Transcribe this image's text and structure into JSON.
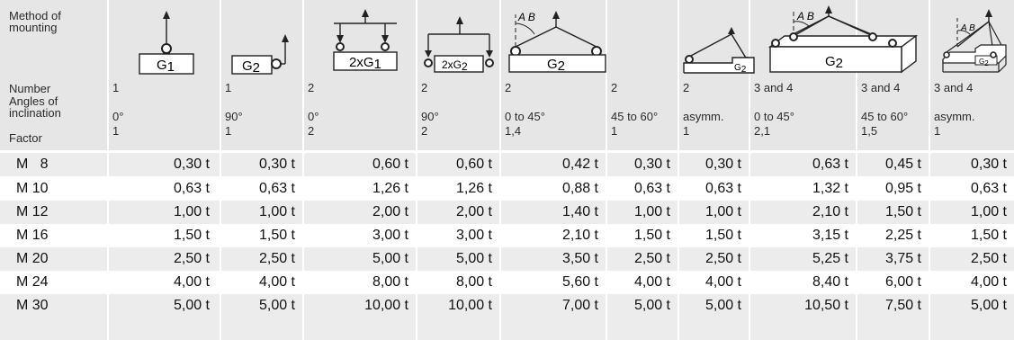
{
  "header": {
    "method_label": "Method of\nmounting",
    "number_label": "Number",
    "angle_label": "Angles of\ninclination",
    "factor_label": "Factor",
    "diagram_labels": [
      "G1",
      "G2",
      "2xG1",
      "2xG2",
      "G2",
      "G2",
      "G2",
      "G2"
    ],
    "angle_marks": "A B",
    "columns": [
      {
        "number": "1",
        "angle": "0°",
        "factor": "1"
      },
      {
        "number": "1",
        "angle": "90°",
        "factor": "1"
      },
      {
        "number": "2",
        "angle": "0°",
        "factor": "2"
      },
      {
        "number": "2",
        "angle": "90°",
        "factor": "2"
      },
      {
        "number": "2",
        "angle": "0 to 45°",
        "factor": "1,4"
      },
      {
        "number": "2",
        "angle": "45 to 60°",
        "factor": "1"
      },
      {
        "number": "2",
        "angle": "asymm.",
        "factor": "1"
      },
      {
        "number": "3 and 4",
        "angle": "0 to 45°",
        "factor": "2,1"
      },
      {
        "number": "3 and 4",
        "angle": "45 to 60°",
        "factor": "1,5"
      },
      {
        "number": "3 and 4",
        "angle": "asymm.",
        "factor": "1"
      }
    ]
  },
  "rows": [
    {
      "size": "M   8",
      "values": [
        "0,30 t",
        "0,30 t",
        "0,60 t",
        "0,60 t",
        "0,42 t",
        "0,30 t",
        "0,30 t",
        "0,63 t",
        "0,45 t",
        "0,30 t"
      ]
    },
    {
      "size": "M 10",
      "values": [
        "0,63 t",
        "0,63 t",
        "1,26 t",
        "1,26 t",
        "0,88 t",
        "0,63 t",
        "0,63 t",
        "1,32 t",
        "0,95 t",
        "0,63 t"
      ]
    },
    {
      "size": "M 12",
      "values": [
        "1,00 t",
        "1,00 t",
        "2,00 t",
        "2,00 t",
        "1,40 t",
        "1,00 t",
        "1,00 t",
        "2,10 t",
        "1,50 t",
        "1,00 t"
      ]
    },
    {
      "size": "M 16",
      "values": [
        "1,50 t",
        "1,50 t",
        "3,00 t",
        "3,00 t",
        "2,10 t",
        "1,50 t",
        "1,50 t",
        "3,15 t",
        "2,25 t",
        "1,50 t"
      ]
    },
    {
      "size": "M 20",
      "values": [
        "2,50 t",
        "2,50 t",
        "5,00 t",
        "5,00 t",
        "3,50 t",
        "2,50 t",
        "2,50 t",
        "5,25 t",
        "3,75 t",
        "2,50 t"
      ]
    },
    {
      "size": "M 24",
      "values": [
        "4,00 t",
        "4,00 t",
        "8,00 t",
        "8,00 t",
        "5,60 t",
        "4,00 t",
        "4,00 t",
        "8,40 t",
        "6,00 t",
        "4,00 t"
      ]
    },
    {
      "size": "M 30",
      "values": [
        "5,00 t",
        "5,00 t",
        "10,00 t",
        "10,00 t",
        "7,00 t",
        "5,00 t",
        "5,00 t",
        "10,50 t",
        "7,50 t",
        "5,00 t"
      ]
    }
  ],
  "colors": {
    "header_bg": "#e6e6e6",
    "row_alt": "#ececec",
    "row": "#ffffff",
    "text": "#1a1a1a"
  }
}
